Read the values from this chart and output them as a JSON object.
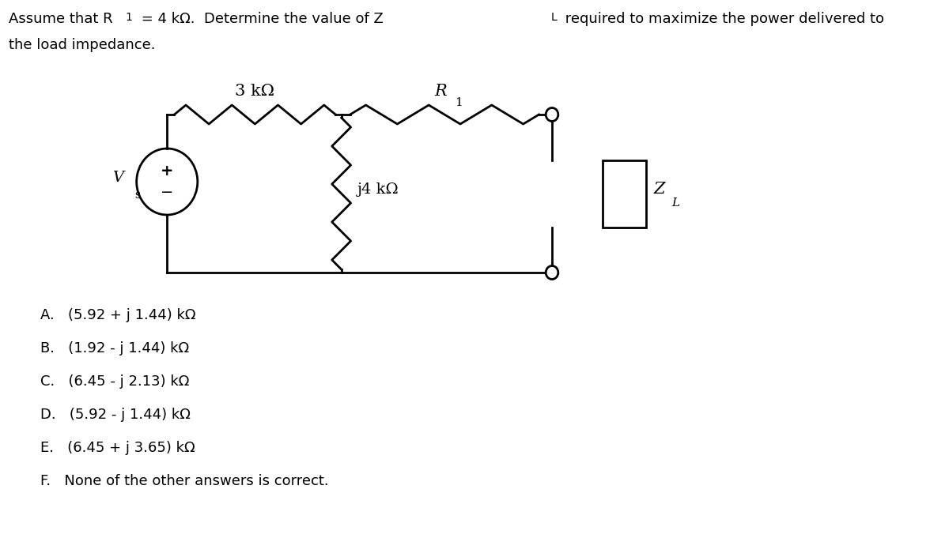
{
  "choices": [
    "A.   (5.92 + j 1.44) kΩ",
    "B.   (1.92 - j 1.44) kΩ",
    "C.   (6.45 - j 2.13) kΩ",
    "D.   (5.92 - j 1.44) kΩ",
    "E.   (6.45 + j 3.65) kΩ",
    "F.   None of the other answers is correct."
  ],
  "bg_color": "#ffffff",
  "text_color": "#000000",
  "resistor_3k_label": "3 kΩ",
  "inductor_label": "j4 kΩ",
  "lw": 2.0
}
